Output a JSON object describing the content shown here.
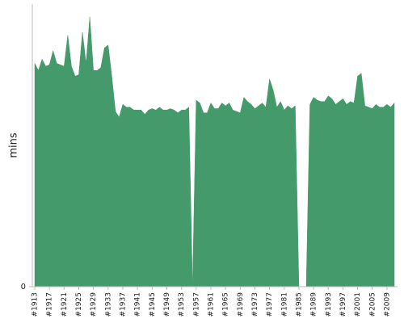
{
  "chart_data": {
    "type": "area",
    "y_label": "mins",
    "color": "#459a6b",
    "categories": [
      "#1913",
      null,
      null,
      null,
      "#1917",
      null,
      null,
      null,
      "#1921",
      null,
      null,
      null,
      "#1925",
      null,
      null,
      null,
      "#1929",
      null,
      null,
      null,
      "#1933",
      null,
      null,
      null,
      "#1937",
      null,
      null,
      null,
      "#1941",
      null,
      null,
      null,
      "#1945",
      null,
      null,
      null,
      "#1949",
      null,
      null,
      null,
      "#1953",
      null,
      null,
      null,
      "#1957",
      null,
      null,
      null,
      "#1961",
      null,
      null,
      null,
      "#1965",
      null,
      null,
      null,
      "#1969",
      null,
      null,
      null,
      "#1973",
      null,
      null,
      null,
      "#1977",
      null,
      null,
      null,
      "#1981",
      null,
      null,
      null,
      "#1985",
      null,
      null,
      null,
      "#1989",
      null,
      null,
      null,
      "#1993",
      null,
      null,
      null,
      "#1997",
      null,
      null,
      null,
      "#2001",
      null,
      null,
      null,
      "#2005",
      null,
      null,
      null,
      "#2009",
      null,
      null
    ],
    "values": [
      158,
      153,
      161,
      156,
      157,
      167,
      158,
      157,
      156,
      178,
      156,
      149,
      150,
      180,
      158,
      191,
      153,
      153,
      155,
      169,
      171,
      149,
      124,
      120,
      129,
      127,
      127,
      125,
      125,
      125,
      122,
      125,
      126,
      125,
      127,
      125,
      125,
      126,
      125,
      123,
      125,
      125,
      127,
      0,
      132,
      130,
      123,
      123,
      130,
      126,
      126,
      130,
      128,
      130,
      125,
      124,
      123,
      134,
      131,
      129,
      126,
      128,
      130,
      127,
      147,
      139,
      127,
      131,
      125,
      128,
      126,
      128,
      0,
      0,
      0,
      129,
      134,
      132,
      131,
      131,
      135,
      133,
      129,
      131,
      133,
      129,
      131,
      130,
      149,
      151,
      128,
      127,
      126,
      129,
      127,
      127,
      129,
      127,
      130
    ],
    "ylim": [
      0,
      200
    ],
    "yticks": [
      0
    ]
  }
}
